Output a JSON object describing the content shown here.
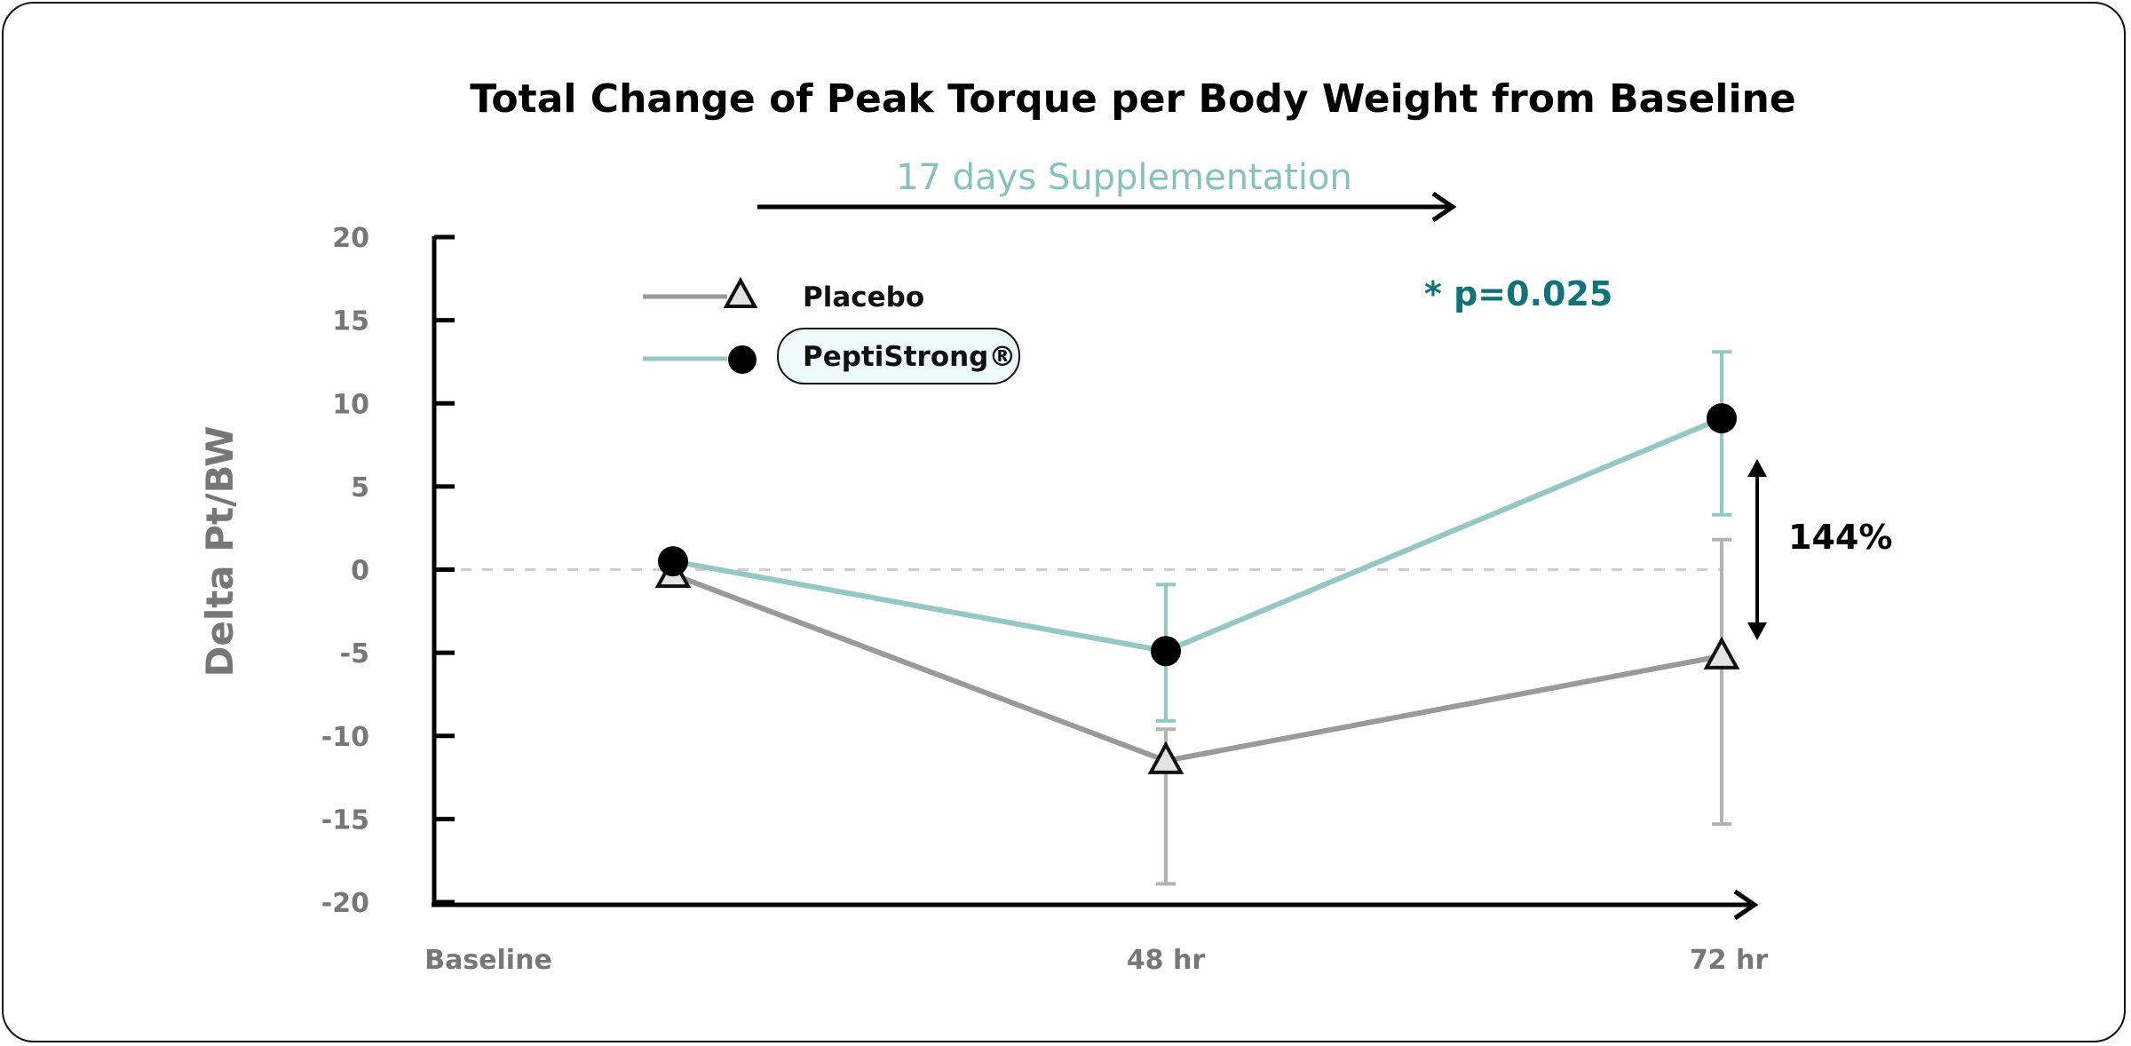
{
  "chart_data": {
    "type": "line",
    "title": "Total Change of Peak Torque per Body Weight from Baseline",
    "ylabel": "Delta Pt/BW",
    "xlabel": "",
    "ylim": [
      -20,
      20
    ],
    "y_ticks": [
      "20",
      "15",
      "10",
      "5",
      "0",
      "-5",
      "-10",
      "-15",
      "-20"
    ],
    "categories": [
      "Baseline",
      "48 hr",
      "72 hr"
    ],
    "grid": false,
    "legend_position": "top-left",
    "annotations": {
      "supplementation": "17 days Supplementation",
      "p_value": "* p=0.025",
      "difference": "144%"
    },
    "series": [
      {
        "name": "Placebo",
        "marker": "triangle",
        "color": "#9a9a9a",
        "points": [
          {
            "x": "Baseline",
            "y": -0.3,
            "err_low": null,
            "err_high": null
          },
          {
            "x": "48 hr",
            "y": -11.5,
            "err_low": -18.9,
            "err_high": -9.6
          },
          {
            "x": "72 hr",
            "y": -5.2,
            "err_low": -15.3,
            "err_high": 1.8
          }
        ]
      },
      {
        "name": "PeptiStrong®",
        "marker": "circle",
        "color": "#93c8c4",
        "points": [
          {
            "x": "Baseline",
            "y": 0.5,
            "err_low": null,
            "err_high": null
          },
          {
            "x": "48 hr",
            "y": -4.9,
            "err_low": -9.1,
            "err_high": -0.9
          },
          {
            "x": "72 hr",
            "y": 9.1,
            "err_low": 3.3,
            "err_high": 13.1
          }
        ]
      }
    ]
  }
}
